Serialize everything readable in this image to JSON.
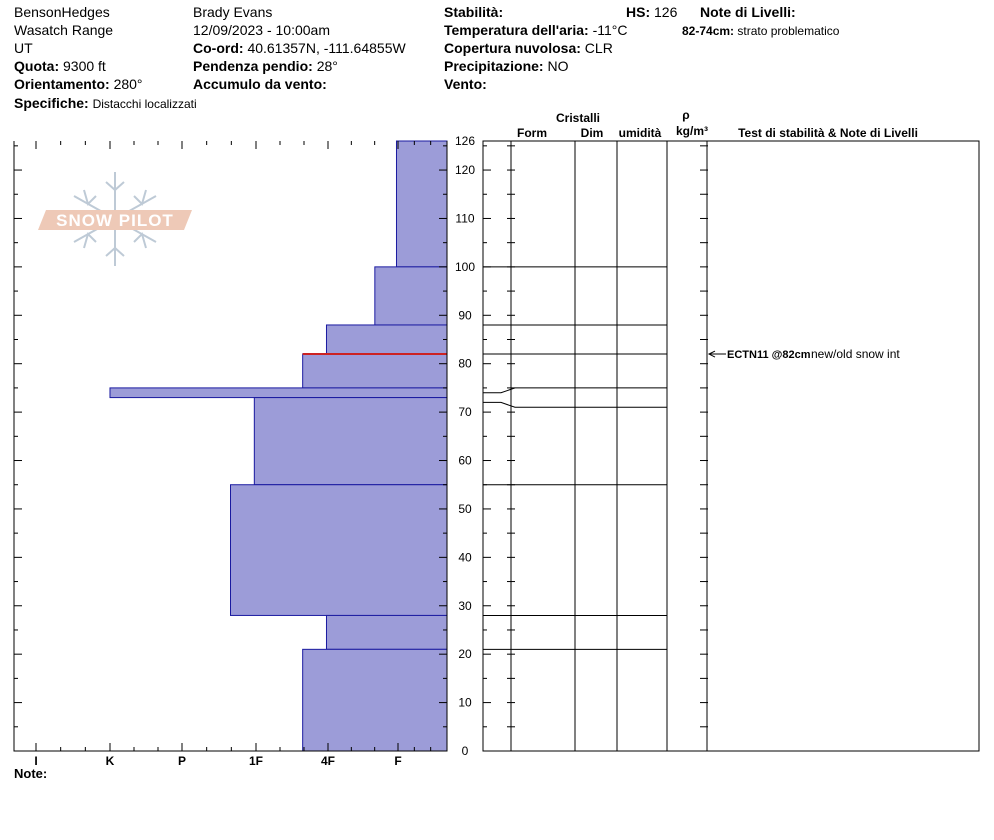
{
  "header": {
    "location": "BensonHedges",
    "range": "Wasatch Range",
    "state": "UT",
    "elevation_label": "Quota:",
    "elevation_value": "9300 ft",
    "aspect_label": "Orientamento:",
    "aspect_value": "280°",
    "specifics_label": "Specifiche:",
    "specifics_value": "Distacchi localizzati",
    "observer": "Brady Evans",
    "datetime": "12/09/2023 - 10:00am",
    "coords_label": "Co-ord:",
    "coords_value": "40.61357N, -111.64855W",
    "slope_label": "Pendenza pendio:",
    "slope_value": "28°",
    "wind_loading_label": "Accumulo da vento:",
    "wind_loading_value": "",
    "stability_label": "Stabilità:",
    "stability_value": "",
    "hs_label": "HS:",
    "hs_value": "126",
    "air_temp_label": "Temperatura dell'aria:",
    "air_temp_value": "-11°C",
    "cloud_label": "Copertura nuvolosa:",
    "cloud_value": "CLR",
    "precip_label": "Precipitazione:",
    "precip_value": "NO",
    "wind_label": "Vento:",
    "wind_value": "",
    "layer_notes_label": "Note di Livelli:",
    "layer_note_range": "82-74cm:",
    "layer_note_text": "strato problematico"
  },
  "columns": {
    "crystals": "Cristalli",
    "form": "Form",
    "dim": "Dim",
    "moisture": "umidità",
    "rho": "ρ",
    "density_unit": "kg/m³",
    "tests_notes": "Test di stabilità & Note di Livelli"
  },
  "notes_label": "Note:",
  "logo_text": "SNOW PILOT",
  "stability_test": {
    "code": "ECTN11 @82cm",
    "comment": "new/old snow int",
    "depth_cm": 82
  },
  "chart_data": {
    "type": "bar",
    "orientation": "horizontal",
    "y_axis": "snow height (cm)",
    "ylim": [
      0,
      126
    ],
    "y_ticks": [
      0,
      10,
      20,
      30,
      40,
      50,
      60,
      70,
      80,
      90,
      100,
      110,
      120,
      126
    ],
    "x_ticks": [
      "I",
      "K",
      "P",
      "1F",
      "4F",
      "F"
    ],
    "hardness_scale_max": 6,
    "bar_color": "#9c9cd8",
    "edge_color": "#1a1aa0",
    "highlight_color": "#cc2222",
    "layers": [
      {
        "top": 126,
        "bottom": 100,
        "hardness": 0.7
      },
      {
        "top": 100,
        "bottom": 88,
        "hardness": 1.0
      },
      {
        "top": 88,
        "bottom": 82,
        "hardness": 1.67
      },
      {
        "top": 82,
        "bottom": 75,
        "hardness": 2.0
      },
      {
        "top": 75,
        "bottom": 73,
        "hardness": 4.67
      },
      {
        "top": 73,
        "bottom": 55,
        "hardness": 2.67
      },
      {
        "top": 55,
        "bottom": 28,
        "hardness": 3.0
      },
      {
        "top": 28,
        "bottom": 21,
        "hardness": 1.67
      },
      {
        "top": 21,
        "bottom": 0,
        "hardness": 2.0
      }
    ],
    "highlight_depth": 82,
    "crystal_boundaries_right": [
      126,
      100,
      88,
      82,
      75,
      71,
      55,
      28,
      21
    ],
    "crystal_boundaries_left": [
      126,
      100,
      88,
      82,
      74,
      72,
      55,
      28,
      21
    ]
  }
}
